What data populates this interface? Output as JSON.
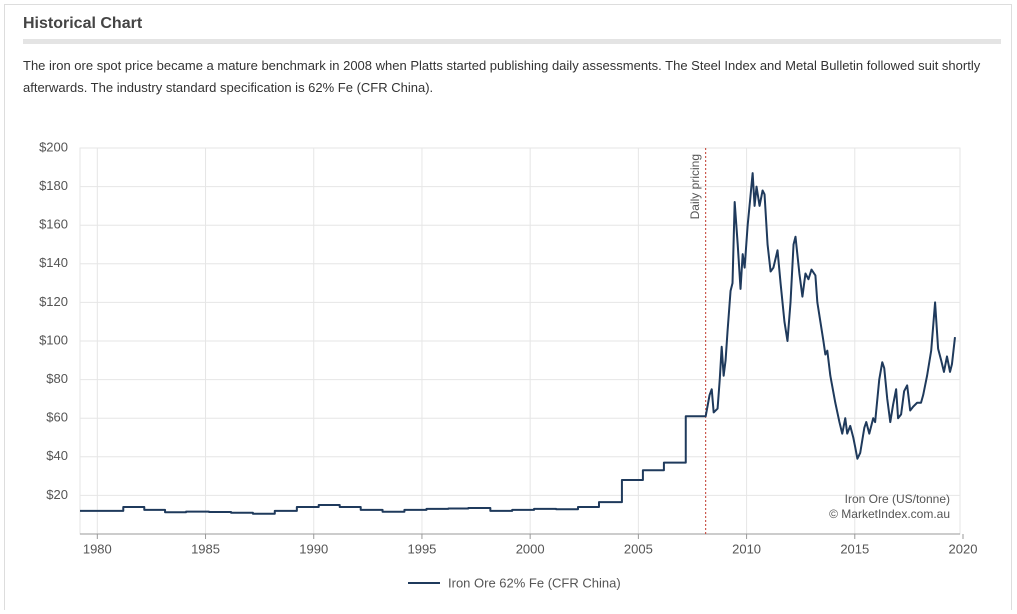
{
  "chart_data": {
    "type": "line",
    "title": "Historical Chart",
    "subtitle": "The iron ore spot price became a mature benchmark in 2008 when Platts started publishing daily assessments. The Steel Index and Metal Bulletin followed suit shortly afterwards. The industry standard specification is 62% Fe (CFR China).",
    "x": [
      1979.2,
      1981.2,
      1981.2,
      1982.17,
      1982.17,
      1983.13,
      1983.13,
      1984.1,
      1984.1,
      1985.16,
      1985.16,
      1986.18,
      1986.18,
      1987.19,
      1987.19,
      1988.2,
      1988.2,
      1989.22,
      1989.22,
      1990.23,
      1990.23,
      1991.2,
      1991.2,
      1992.17,
      1992.17,
      1993.18,
      1993.18,
      1994.19,
      1994.19,
      1995.21,
      1995.21,
      1996.22,
      1996.22,
      1997.14,
      1997.14,
      1998.16,
      1998.16,
      1999.17,
      1999.17,
      2000.18,
      2000.18,
      2001.2,
      2001.2,
      2002.21,
      2002.21,
      2003.18,
      2003.18,
      2004.24,
      2004.24,
      2005.21,
      2005.21,
      2006.18,
      2006.18,
      2007.19,
      2007.19,
      2008.11,
      2008.29,
      2008.39,
      2008.48,
      2008.66,
      2008.76,
      2008.85,
      2008.94,
      2009.03,
      2009.12,
      2009.26,
      2009.35,
      2009.45,
      2009.59,
      2009.72,
      2009.82,
      2009.91,
      2010.05,
      2010.18,
      2010.28,
      2010.37,
      2010.46,
      2010.6,
      2010.74,
      2010.83,
      2010.97,
      2011.11,
      2011.24,
      2011.43,
      2011.57,
      2011.75,
      2011.89,
      2012.03,
      2012.17,
      2012.26,
      2012.44,
      2012.58,
      2012.72,
      2012.86,
      2013.0,
      2013.18,
      2013.27,
      2013.41,
      2013.55,
      2013.64,
      2013.73,
      2013.87,
      2014.1,
      2014.29,
      2014.42,
      2014.56,
      2014.65,
      2014.79,
      2014.93,
      2015.02,
      2015.12,
      2015.25,
      2015.44,
      2015.53,
      2015.67,
      2015.85,
      2015.94,
      2016.13,
      2016.27,
      2016.36,
      2016.5,
      2016.64,
      2016.77,
      2016.91,
      2017.0,
      2017.14,
      2017.28,
      2017.42,
      2017.56,
      2017.7,
      2017.88,
      2018.06,
      2018.16,
      2018.34,
      2018.53,
      2018.71,
      2018.85,
      2018.99,
      2019.12,
      2019.26,
      2019.4,
      2019.49,
      2019.63
    ],
    "series": [
      {
        "name": "Iron Ore 62% Fe (CFR China)",
        "color": "#1f3a5c",
        "values": [
          12,
          12,
          14,
          14,
          12.5,
          12.5,
          11.3,
          11.3,
          11.6,
          11.6,
          11.4,
          11.4,
          11,
          11,
          10.5,
          10.5,
          12,
          12,
          14,
          14,
          15,
          15,
          14,
          14,
          12.5,
          12.5,
          11.5,
          11.5,
          12.5,
          12.5,
          13,
          13,
          13.2,
          13.2,
          13.5,
          13.5,
          12,
          12,
          12.5,
          12.5,
          13,
          13,
          12.8,
          12.8,
          14,
          14,
          16.5,
          16.5,
          28,
          28,
          33,
          33,
          37,
          37,
          61,
          61,
          72,
          75,
          63,
          65,
          80,
          97,
          82,
          90,
          105,
          126,
          130,
          172,
          150,
          127,
          145,
          138,
          160,
          175,
          187,
          170,
          180,
          170,
          178,
          176,
          150,
          136,
          138,
          147,
          130,
          110,
          100,
          120,
          150,
          154,
          135,
          123,
          135,
          132,
          137,
          134,
          120,
          110,
          100,
          93,
          95,
          82,
          68,
          58,
          52,
          60,
          52,
          56,
          50,
          45,
          39,
          42,
          55,
          58,
          52,
          60,
          58,
          80,
          89,
          86,
          70,
          58,
          67,
          75,
          60,
          62,
          74,
          77,
          64,
          66,
          68,
          68,
          72,
          82,
          95,
          120,
          96,
          90,
          84,
          92,
          84,
          88,
          102
        ]
      }
    ],
    "xlim": [
      1979.2,
      2020
    ],
    "xticks": [
      1980,
      1985,
      1990,
      1995,
      2000,
      2005,
      2010,
      2015,
      2020
    ],
    "ylim": [
      0,
      200
    ],
    "yticks": [
      {
        "value": 20,
        "label": "$20"
      },
      {
        "value": 40,
        "label": "$40"
      },
      {
        "value": 60,
        "label": "$60"
      },
      {
        "value": 80,
        "label": "$80"
      },
      {
        "value": 100,
        "label": "$100"
      },
      {
        "value": 120,
        "label": "$120"
      },
      {
        "value": 140,
        "label": "$140"
      },
      {
        "value": 160,
        "label": "$160"
      },
      {
        "value": 180,
        "label": "$180"
      },
      {
        "value": 200,
        "label": "$200"
      }
    ],
    "grid": true,
    "legend": "bottom",
    "annotations": [
      {
        "text": "Daily pricing",
        "x": 2008.11,
        "color": "#c0392b"
      }
    ],
    "credits": [
      "Iron Ore (US/tonne)",
      "© MarketIndex.com.au"
    ]
  }
}
